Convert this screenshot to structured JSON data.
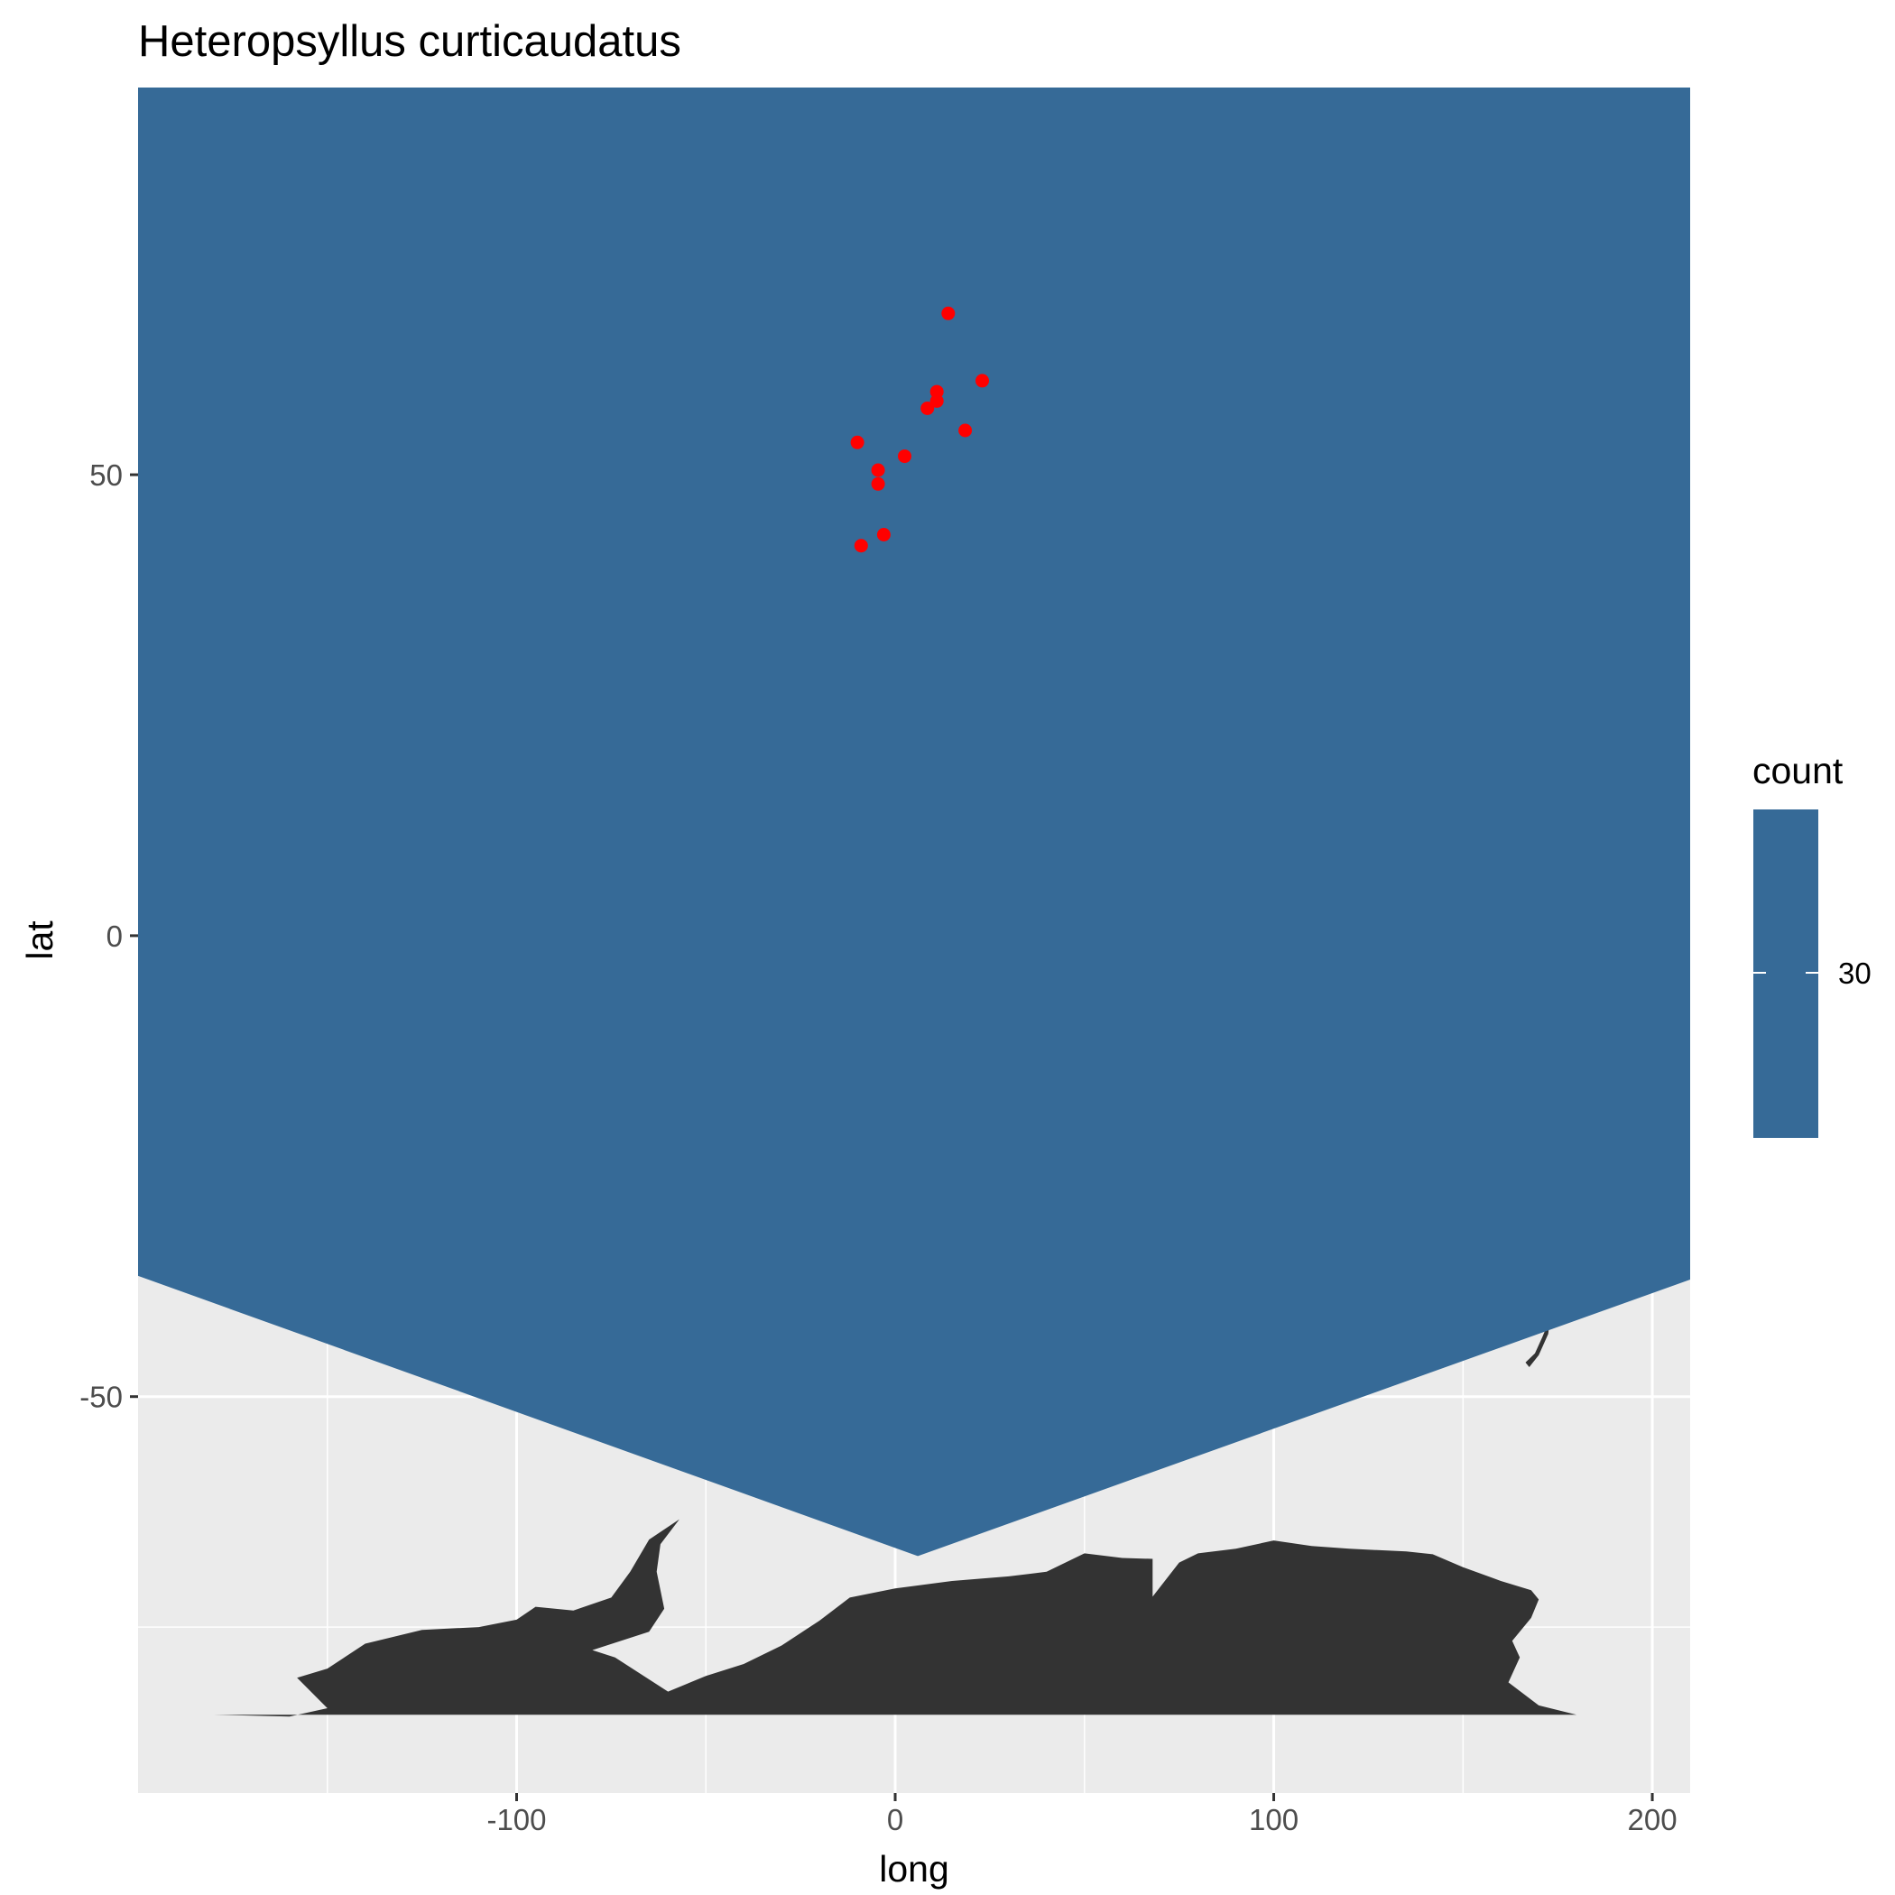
{
  "chart_data": {
    "type": "scatter",
    "title": "Heteropsyllus curticaudatus",
    "xlabel": "long",
    "ylabel": "lat",
    "xlim": [
      -200,
      210
    ],
    "ylim": [
      -93,
      92
    ],
    "x_ticks": [
      -100,
      0,
      100,
      200
    ],
    "y_ticks": [
      -50,
      0,
      50
    ],
    "grid": true,
    "background_color": "#ebebeb",
    "land_color": "#333333",
    "density_fill_color": "#366a97",
    "point_color": "#ff0000",
    "legend": {
      "title": "count",
      "placement": "right",
      "labels": [
        "30"
      ],
      "colors": [
        "#366a97"
      ]
    },
    "points": [
      {
        "x": 14,
        "y": 67.5
      },
      {
        "x": 23,
        "y": 60.2
      },
      {
        "x": 11,
        "y": 59.0
      },
      {
        "x": 11,
        "y": 58.0
      },
      {
        "x": 8.5,
        "y": 57.2
      },
      {
        "x": 18.5,
        "y": 54.8
      },
      {
        "x": -10,
        "y": 53.5
      },
      {
        "x": 2.5,
        "y": 52.0
      },
      {
        "x": -4.5,
        "y": 50.5
      },
      {
        "x": -4.5,
        "y": 49.0
      },
      {
        "x": -3,
        "y": 43.5
      },
      {
        "x": -9,
        "y": 42.3
      }
    ],
    "density_polygon": [
      {
        "x": -200,
        "y": 92
      },
      {
        "x": 210,
        "y": 92
      },
      {
        "x": 210,
        "y": -37.3
      },
      {
        "x": 6,
        "y": -67.3
      },
      {
        "x": -200,
        "y": -36.9
      }
    ],
    "land_polygons": [
      [
        {
          "x": -180,
          "y": -84.5
        },
        {
          "x": -160,
          "y": -84.7
        },
        {
          "x": -150,
          "y": -83.8
        },
        {
          "x": -158,
          "y": -80.5
        },
        {
          "x": -150,
          "y": -79.5
        },
        {
          "x": -140,
          "y": -76.8
        },
        {
          "x": -125,
          "y": -75.3
        },
        {
          "x": -110,
          "y": -75.0
        },
        {
          "x": -100,
          "y": -74.2
        },
        {
          "x": -95,
          "y": -72.8
        },
        {
          "x": -85,
          "y": -73.2
        },
        {
          "x": -75,
          "y": -71.8
        },
        {
          "x": -70,
          "y": -69.0
        },
        {
          "x": -65,
          "y": -65.5
        },
        {
          "x": -57,
          "y": -63.3
        },
        {
          "x": -62,
          "y": -66.0
        },
        {
          "x": -63,
          "y": -69.0
        },
        {
          "x": -61,
          "y": -73.0
        },
        {
          "x": -65,
          "y": -75.5
        },
        {
          "x": -80,
          "y": -77.5
        },
        {
          "x": -74,
          "y": -78.3
        },
        {
          "x": -60,
          "y": -82.0
        },
        {
          "x": -50,
          "y": -80.3
        },
        {
          "x": -40,
          "y": -79.0
        },
        {
          "x": -35,
          "y": -78.0
        },
        {
          "x": -30,
          "y": -77.0
        },
        {
          "x": -20,
          "y": -74.3
        },
        {
          "x": -12,
          "y": -71.8
        },
        {
          "x": 0,
          "y": -70.8
        },
        {
          "x": 15,
          "y": -70.0
        },
        {
          "x": 30,
          "y": -69.5
        },
        {
          "x": 40,
          "y": -69.0
        },
        {
          "x": 50,
          "y": -67.0
        },
        {
          "x": 60,
          "y": -67.5
        },
        {
          "x": 68,
          "y": -67.6
        },
        {
          "x": 68,
          "y": -71.7
        },
        {
          "x": 75,
          "y": -68.0
        },
        {
          "x": 80,
          "y": -67.0
        },
        {
          "x": 90,
          "y": -66.5
        },
        {
          "x": 100,
          "y": -65.6
        },
        {
          "x": 110,
          "y": -66.2
        },
        {
          "x": 120,
          "y": -66.5
        },
        {
          "x": 135,
          "y": -66.8
        },
        {
          "x": 142,
          "y": -67.1
        },
        {
          "x": 150,
          "y": -68.5
        },
        {
          "x": 160,
          "y": -70.0
        },
        {
          "x": 168,
          "y": -71.0
        },
        {
          "x": 170,
          "y": -72.0
        },
        {
          "x": 168,
          "y": -74.0
        },
        {
          "x": 163,
          "y": -76.5
        },
        {
          "x": 165,
          "y": -78.3
        },
        {
          "x": 162,
          "y": -81.0
        },
        {
          "x": 170,
          "y": -83.5
        },
        {
          "x": 180,
          "y": -84.5
        }
      ],
      [
        {
          "x": 166.5,
          "y": -46.3
        },
        {
          "x": 169,
          "y": -45.3
        },
        {
          "x": 171,
          "y": -43.5
        },
        {
          "x": 173,
          "y": -41.5
        },
        {
          "x": 172.5,
          "y": -43.2
        },
        {
          "x": 170,
          "y": -45.5
        },
        {
          "x": 167.5,
          "y": -46.8
        }
      ]
    ]
  }
}
